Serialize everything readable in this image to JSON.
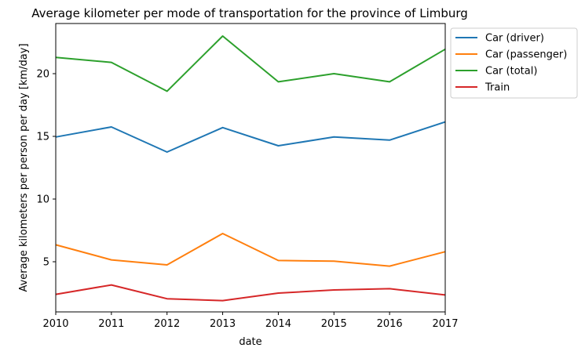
{
  "chart_data": {
    "type": "line",
    "title": "Average kilometer per mode of transportation for the province of Limburg",
    "xlabel": "date",
    "ylabel": "Average kilometers per person per day [km/day]",
    "x": [
      2010,
      2011,
      2012,
      2013,
      2014,
      2015,
      2016,
      2017
    ],
    "xlim": [
      2010,
      2017
    ],
    "ylim": [
      1.0,
      24.0
    ],
    "xticks": [
      "2010",
      "2011",
      "2012",
      "2013",
      "2014",
      "2015",
      "2016",
      "2017"
    ],
    "yticks": [
      "5",
      "10",
      "15",
      "20"
    ],
    "grid": false,
    "legend_position": "outside-top-right",
    "series": [
      {
        "name": "Car (driver)",
        "color": "#1f77b4",
        "values": [
          14.95,
          15.75,
          13.75,
          15.7,
          14.25,
          14.95,
          14.7,
          16.15
        ]
      },
      {
        "name": "Car (passenger)",
        "color": "#ff7f0e",
        "values": [
          6.35,
          5.15,
          4.75,
          7.25,
          5.1,
          5.05,
          4.65,
          5.8
        ]
      },
      {
        "name": "Car (total)",
        "color": "#2ca02c",
        "values": [
          21.3,
          20.9,
          18.6,
          23.0,
          19.35,
          20.0,
          19.35,
          21.95
        ]
      },
      {
        "name": "Train",
        "color": "#d62728",
        "values": [
          2.4,
          3.15,
          2.05,
          1.9,
          2.5,
          2.75,
          2.85,
          2.35
        ]
      }
    ]
  }
}
